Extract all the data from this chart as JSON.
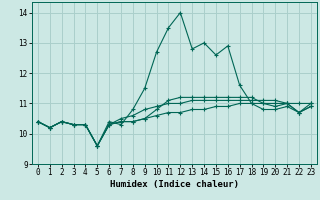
{
  "xlabel": "Humidex (Indice chaleur)",
  "ylabel": "",
  "background_color": "#cce8e4",
  "grid_color": "#aacfcb",
  "line_color": "#006655",
  "x_data": [
    0,
    1,
    2,
    3,
    4,
    5,
    6,
    7,
    8,
    9,
    10,
    11,
    12,
    13,
    14,
    15,
    16,
    17,
    18,
    19,
    20,
    21,
    22,
    23
  ],
  "series": [
    [
      10.4,
      10.2,
      10.4,
      10.3,
      10.3,
      9.6,
      10.3,
      10.4,
      10.4,
      10.5,
      10.6,
      10.7,
      10.7,
      10.8,
      10.8,
      10.9,
      10.9,
      11.0,
      11.0,
      11.0,
      11.0,
      11.0,
      11.0,
      11.0
    ],
    [
      10.4,
      10.2,
      10.4,
      10.3,
      10.3,
      9.6,
      10.3,
      10.5,
      10.6,
      10.8,
      10.9,
      11.0,
      11.0,
      11.1,
      11.1,
      11.1,
      11.1,
      11.1,
      11.1,
      11.1,
      11.1,
      11.0,
      10.7,
      10.9
    ],
    [
      10.4,
      10.2,
      10.4,
      10.3,
      10.3,
      9.6,
      10.3,
      10.4,
      10.4,
      10.5,
      10.8,
      11.1,
      11.2,
      11.2,
      11.2,
      11.2,
      11.2,
      11.2,
      11.2,
      11.0,
      10.9,
      11.0,
      10.7,
      10.9
    ],
    [
      10.4,
      10.2,
      10.4,
      10.3,
      10.3,
      9.6,
      10.4,
      10.3,
      10.8,
      11.5,
      12.7,
      13.5,
      14.0,
      12.8,
      13.0,
      12.6,
      12.9,
      11.6,
      11.0,
      10.8,
      10.8,
      10.9,
      10.7,
      11.0
    ]
  ],
  "xlim": [
    -0.5,
    23.5
  ],
  "ylim": [
    9.0,
    14.35
  ],
  "yticks": [
    9,
    10,
    11,
    12,
    13,
    14
  ],
  "xticks": [
    0,
    1,
    2,
    3,
    4,
    5,
    6,
    7,
    8,
    9,
    10,
    11,
    12,
    13,
    14,
    15,
    16,
    17,
    18,
    19,
    20,
    21,
    22,
    23
  ],
  "title_fontsize": 7,
  "label_fontsize": 6.5,
  "tick_fontsize": 5.5,
  "linewidth": 0.8,
  "markersize": 3.0
}
